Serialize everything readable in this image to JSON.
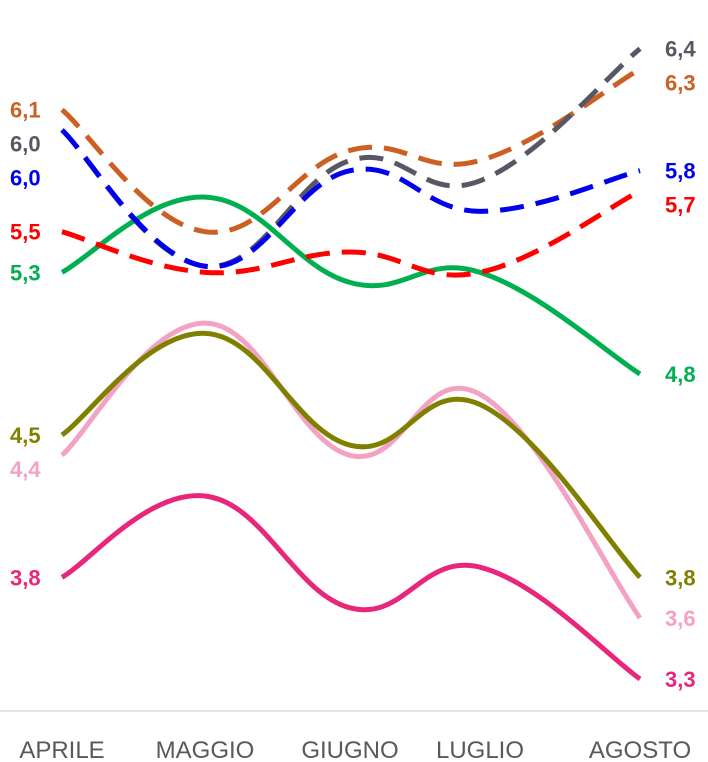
{
  "chart_data": {
    "type": "line",
    "categories": [
      "APRILE",
      "MAGGIO",
      "GIUGNO",
      "LUGLIO",
      "AGOSTO"
    ],
    "ylim": [
      3.0,
      6.6
    ],
    "grid": false,
    "smooth": true,
    "series": [
      {
        "color": "#CC6022",
        "dashed": true,
        "values": [
          6.1,
          5.5,
          5.9,
          5.85,
          6.3
        ],
        "start_label": "6,1",
        "end_label": "6,3"
      },
      {
        "color": "#595766",
        "dashed": true,
        "values": [
          6.0,
          5.33,
          5.85,
          5.75,
          6.4
        ],
        "start_label": "6,0",
        "end_label": "6,4"
      },
      {
        "color": "#0000EE",
        "dashed": true,
        "values": [
          6.0,
          5.33,
          5.8,
          5.6,
          5.8
        ],
        "start_label": "6,0",
        "end_label": "5,8"
      },
      {
        "color": "#FF0000",
        "dashed": true,
        "values": [
          5.5,
          5.3,
          5.4,
          5.3,
          5.7
        ],
        "start_label": "5,5",
        "end_label": "5,7"
      },
      {
        "color": "#00B050",
        "dashed": false,
        "values": [
          5.3,
          5.67,
          5.25,
          5.3,
          4.8
        ],
        "start_label": "5,3",
        "end_label": "4,8"
      },
      {
        "color": "#F4A2C4",
        "dashed": false,
        "values": [
          4.4,
          5.05,
          4.4,
          4.7,
          3.6
        ],
        "start_label": "4,4",
        "end_label": "3,6"
      },
      {
        "color": "#808000",
        "dashed": false,
        "values": [
          4.5,
          5.0,
          4.45,
          4.65,
          3.8
        ],
        "start_label": "4,5",
        "end_label": "3,8"
      },
      {
        "color": "#E8267A",
        "dashed": false,
        "values": [
          3.8,
          4.2,
          3.65,
          3.85,
          3.3
        ],
        "start_label": "3,8",
        "end_label": "3,3"
      }
    ]
  }
}
